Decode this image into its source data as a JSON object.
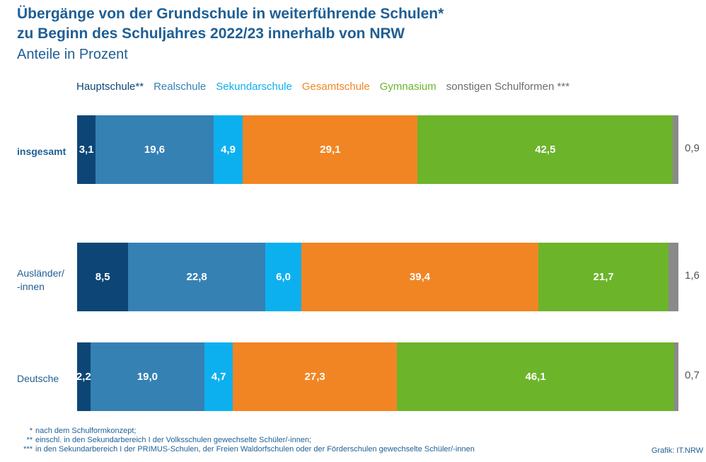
{
  "title_line1": "Übergänge von der Grundschule in weiterführende Schulen*",
  "title_line2": "zu Beginn des Schuljahres 2022/23 innerhalb von NRW",
  "subtitle": "Anteile in Prozent",
  "colors": {
    "Hauptschule": "#0d4676",
    "Realschule": "#3581b4",
    "Sekundarschule": "#0db0ef",
    "Gesamtschule": "#f28523",
    "Gymnasium": "#6cb42a",
    "sonstige": "#8a8a8a"
  },
  "chart_data": {
    "type": "bar",
    "orientation": "horizontal",
    "stacked": true,
    "unit": "Prozent",
    "categories": [
      "insgesamt",
      "Ausländer/\n-innen",
      "Deutsche"
    ],
    "series": [
      {
        "name": "Hauptschule**",
        "key": "Hauptschule",
        "values": [
          3.1,
          8.5,
          2.2
        ],
        "labels": [
          "3,1",
          "8,5",
          "2,2"
        ]
      },
      {
        "name": "Realschule",
        "key": "Realschule",
        "values": [
          19.6,
          22.8,
          19.0
        ],
        "labels": [
          "19,6",
          "22,8",
          "19,0"
        ]
      },
      {
        "name": "Sekundarschule",
        "key": "Sekundarschule",
        "values": [
          4.9,
          6.0,
          4.7
        ],
        "labels": [
          "4,9",
          "6,0",
          "4,7"
        ]
      },
      {
        "name": "Gesamtschule",
        "key": "Gesamtschule",
        "values": [
          29.1,
          39.4,
          27.3
        ],
        "labels": [
          "29,1",
          "39,4",
          "27,3"
        ]
      },
      {
        "name": "Gymnasium",
        "key": "Gymnasium",
        "values": [
          42.5,
          21.7,
          46.1
        ],
        "labels": [
          "42,5",
          "21,7",
          "46,1"
        ]
      },
      {
        "name": "sonstigen Schulformen ***",
        "key": "sonstige",
        "values": [
          0.9,
          1.6,
          0.7
        ],
        "labels": [
          "0,9",
          "1,6",
          "0,7"
        ]
      }
    ],
    "legend_position": "top",
    "grid": false
  },
  "footnotes": [
    {
      "mark": "*",
      "text": "nach dem Schulformkonzept;"
    },
    {
      "mark": "**",
      "text": "einschl. in den Sekundarbereich I der Volksschulen gewechselte Schüler/-innen;"
    },
    {
      "mark": "***",
      "text": "in den Sekundarbereich I der PRIMUS-Schulen, der Freien Waldorfschulen oder der Förderschulen gewechselte Schüler/-innen"
    }
  ],
  "source": "Grafik: IT.NRW"
}
